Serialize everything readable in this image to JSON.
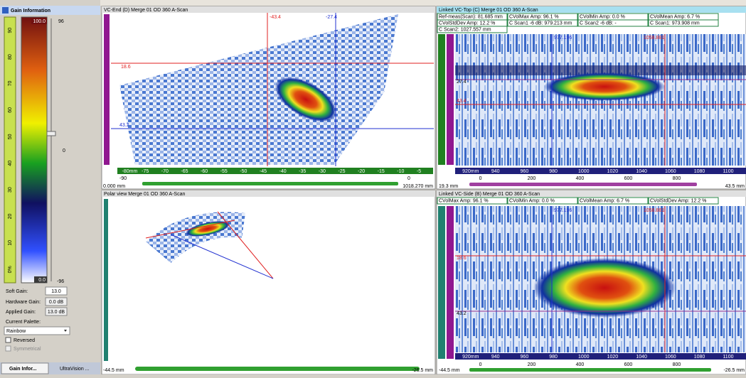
{
  "gain_panel": {
    "title": "Gain Information",
    "palette_max": "100.0",
    "palette_min": "0.0",
    "scale_top": "96",
    "scale_mid": "0",
    "scale_bottom": "-96",
    "scale_ticks": [
      "90",
      "80",
      "70",
      "60",
      "50",
      "40",
      "30",
      "20",
      "10",
      "0%"
    ],
    "soft_gain_label": "Soft Gain:",
    "soft_gain": "13.0",
    "hardware_gain_label": "Hardware Gain:",
    "hardware_gain": "0.0 dB",
    "applied_gain_label": "Applied Gain:",
    "applied_gain": "13.0 dB",
    "palette_label": "Current Palette:",
    "palette": "Rainbow",
    "reversed": "Reversed",
    "symmetrical": "Symmetrical"
  },
  "tabs": [
    "Gain Infor...",
    "UltraVision ..."
  ],
  "end_view": {
    "title": "VC-End (D) Merge 01 OD 360 A-Scan",
    "cursor_x1": "-43.4",
    "cursor_x2": "-27.4",
    "cursor_y1": "18.6",
    "cursor_y2": "43.2",
    "axis_labels": [
      "-80mm",
      "-75",
      "-70",
      "-65",
      "-60",
      "-55",
      "-50",
      "-45",
      "-40",
      "-35",
      "-30",
      "-25",
      "-20",
      "-15",
      "-10",
      "-5"
    ],
    "ruler_left": "-90",
    "ruler_right": "0",
    "range_start": "0.000 mm",
    "range_end": "1018.270 mm"
  },
  "polar_view": {
    "title": "Polar view Merge 01 OD 360 A-Scan",
    "range_start": "-44.5 mm",
    "range_end": "-26.5 mm"
  },
  "top_view": {
    "title": "Linked VC-Top (C) Merge 01 OD 360 A-Scan",
    "info": [
      "Ref-meas(Scan): 81.685 mm",
      "CVolMax Amp: 96.1 %",
      "CVolMin Amp: 0.0 %",
      "CVolMean Amp: 6.7 %",
      "CVolStdDev Amp: 12.2 %",
      "C Scan1 -6 dB: 979.213 mm",
      "C Scan2 -6 dB: -",
      "C Scan1: 973.908 mm",
      "C Scan2: 1027.557 mm"
    ],
    "cursor_x1": "977.196",
    "cursor_x2": "1058.881",
    "cursor_y1": "27.4",
    "cursor_y2": "43.4",
    "axis_labels": [
      "920mm",
      "940",
      "960",
      "980",
      "1000",
      "1020",
      "1040",
      "1060",
      "1080",
      "1100"
    ],
    "index_labels": [
      "0",
      "200",
      "400",
      "600",
      "800"
    ],
    "range_start": "19.3 mm",
    "range_end": "43.5 mm"
  },
  "side_view": {
    "title": "Linked VC-Side (B) Merge 01 OD 360 A-Scan",
    "info": [
      "CVolMax Amp: 96.1 %",
      "CVolMin Amp: 0.0 %",
      "CVolMean Amp: 6.7 %",
      "CVolStdDev Amp: 12.2 %"
    ],
    "cursor_x1": "977.196",
    "cursor_x2": "1058.881",
    "cursor_y1": "18.6",
    "cursor_y2": "43.2",
    "axis_labels": [
      "920mm",
      "940",
      "960",
      "980",
      "1000",
      "1020",
      "1040",
      "1060",
      "1080",
      "1100"
    ],
    "index_labels": [
      "0",
      "200",
      "400",
      "600",
      "800"
    ],
    "range_start": "-44.5 mm",
    "range_end": "-26.5 mm"
  }
}
